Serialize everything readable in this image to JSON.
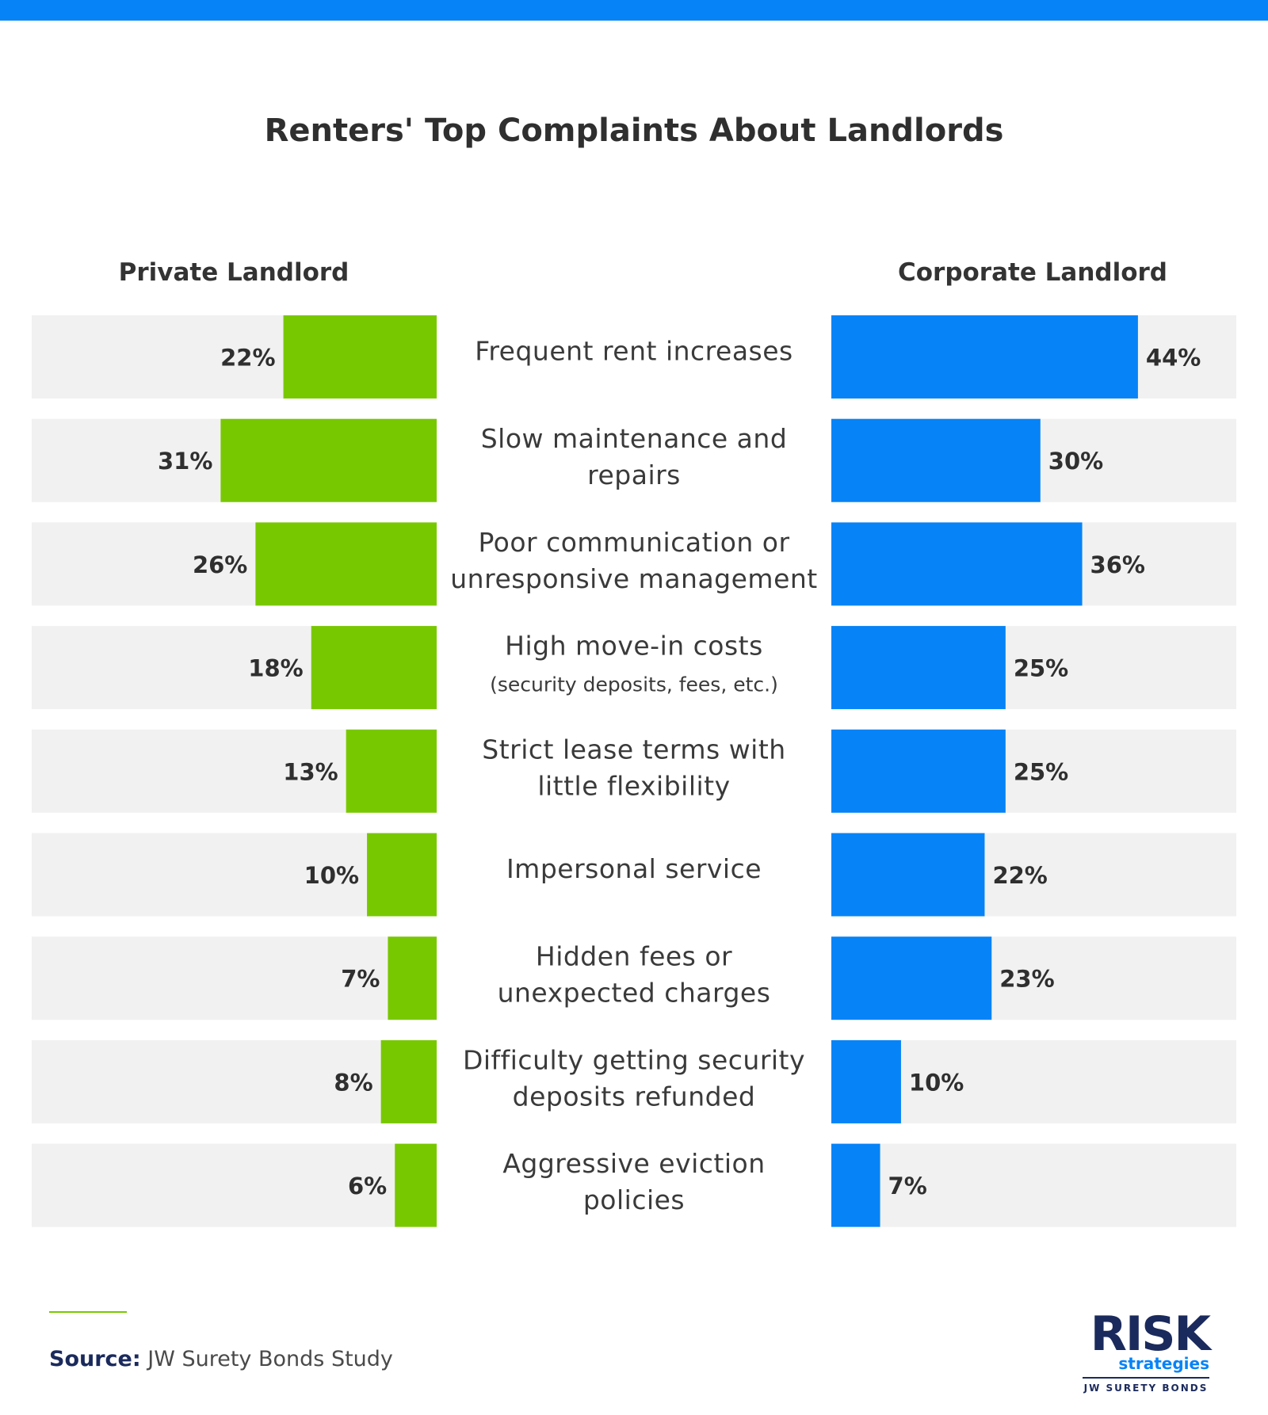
{
  "title": "Renters' Top Complaints About Landlords",
  "chart_data": {
    "type": "bar",
    "title": "Renters' Top Complaints About Landlords",
    "unit": "%",
    "categories": [
      [
        "Frequent rent increases"
      ],
      [
        "Slow maintenance and",
        "repairs"
      ],
      [
        "Poor communication or",
        "unresponsive management"
      ],
      [
        "High move-in costs",
        "(security deposits, fees, etc.)"
      ],
      [
        "Strict lease terms with",
        "little flexibility"
      ],
      [
        "Impersonal service"
      ],
      [
        "Hidden fees or",
        "unexpected charges"
      ],
      [
        "Difficulty getting security",
        "deposits refunded"
      ],
      [
        "Aggressive eviction",
        "policies"
      ]
    ],
    "series": [
      {
        "name": "Private Landlord",
        "color": "#78c800",
        "values": [
          22,
          31,
          26,
          18,
          13,
          10,
          7,
          8,
          6
        ]
      },
      {
        "name": "Corporate Landlord",
        "color": "#0683f7",
        "values": [
          44,
          30,
          36,
          25,
          25,
          22,
          23,
          10,
          7
        ]
      }
    ],
    "xlim": [
      0,
      58
    ]
  },
  "colors": {
    "accent_bar": "#0683f7",
    "private": "#78c800",
    "corporate": "#0683f7",
    "track": "#f1f1f1"
  },
  "source": {
    "label": "Source:",
    "text": " JW Surety Bonds Study"
  },
  "logo": {
    "main": "RISK",
    "sub": "strategies",
    "tag": "JW SURETY BONDS"
  }
}
